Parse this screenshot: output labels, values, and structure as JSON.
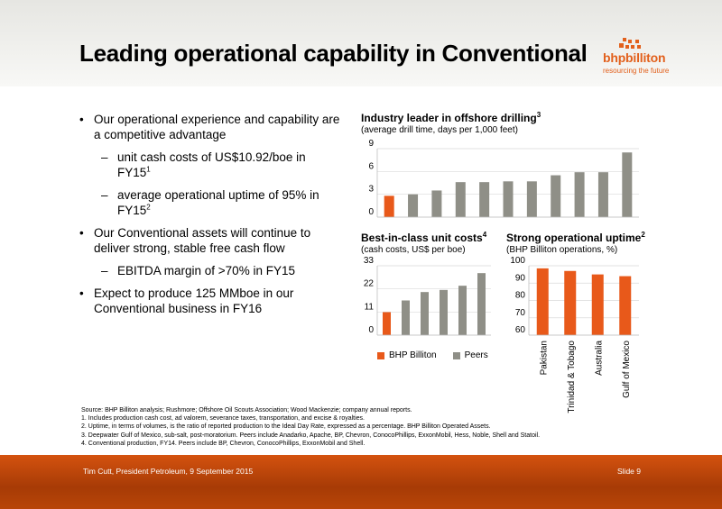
{
  "title": "Leading operational capability in Conventional",
  "logo": {
    "name": "bhpbilliton",
    "tagline": "resourcing the future"
  },
  "bullets": {
    "b1": "Our operational experience and capability are a competitive advantage",
    "s1": "unit cash costs of US$10.92/boe in FY15",
    "s1_ref": "1",
    "s2": "average operational uptime of 95% in FY15",
    "s2_ref": "2",
    "b2": "Our Conventional assets will continue to deliver strong, stable free cash flow",
    "s3": "EBITDA margin of >70% in FY15",
    "b3": "Expect to produce 125 MMboe in our Conventional business in FY16"
  },
  "charts": {
    "drilling": {
      "title": "Industry leader in offshore drilling",
      "ref": "3",
      "subtitle": "(average drill time, days per 1,000 feet)"
    },
    "costs": {
      "title": "Best-in-class unit costs",
      "ref": "4",
      "subtitle": "(cash costs, US$ per boe)"
    },
    "uptime": {
      "title": "Strong operational uptime",
      "ref": "2",
      "subtitle": "(BHP Billiton operations, %)"
    }
  },
  "legend": {
    "bhp": "BHP Billiton",
    "peers": "Peers"
  },
  "colors": {
    "bhp": "#e8591a",
    "peers": "#8f8f87",
    "accent": "#e2601c"
  },
  "chart_data": [
    {
      "type": "bar",
      "title": "Industry leader in offshore drilling",
      "subtitle": "(average drill time, days per 1,000 feet)",
      "yticks": [
        0,
        3,
        6,
        9
      ],
      "ylim": [
        0,
        9
      ],
      "series": [
        {
          "name": "BHP Billiton",
          "values": [
            2.8
          ]
        },
        {
          "name": "Peers",
          "values": [
            3.0,
            3.5,
            4.6,
            4.6,
            4.7,
            4.7,
            5.5,
            5.9,
            5.9,
            8.5
          ]
        }
      ],
      "values": [
        2.8,
        3.0,
        3.5,
        4.6,
        4.6,
        4.7,
        4.7,
        5.5,
        5.9,
        5.9,
        8.5
      ]
    },
    {
      "type": "bar",
      "title": "Best-in-class unit costs",
      "subtitle": "(cash costs, US$ per boe)",
      "yticks": [
        0,
        11,
        22,
        33
      ],
      "ylim": [
        0,
        33
      ],
      "series": [
        {
          "name": "BHP Billiton",
          "values": [
            10.92
          ]
        },
        {
          "name": "Peers",
          "values": [
            16.5,
            20.5,
            21.5,
            23.5,
            29.5
          ]
        }
      ],
      "values": [
        10.92,
        16.5,
        20.5,
        21.5,
        23.5,
        29.5
      ]
    },
    {
      "type": "bar",
      "title": "Strong operational uptime",
      "subtitle": "(BHP Billiton operations, %)",
      "categories": [
        "Pakistan",
        "Trinidad & Tobago",
        "Australia",
        "Gulf of Mexico"
      ],
      "yticks": [
        60,
        70,
        80,
        90,
        100
      ],
      "ylim": [
        60,
        100
      ],
      "values": [
        98.5,
        97,
        95,
        94
      ]
    }
  ],
  "source": "Source:   BHP Billiton analysis; Rushmore; Offshore Oil Scouts Association; Wood Mackenzie; company annual reports.",
  "footnotes": [
    "1.  Includes production cash cost, ad valorem, severance taxes, transportation, and excise & royalties.",
    "2.  Uptime, in terms of volumes, is the ratio of reported production to the Ideal Day Rate, expressed as a percentage. BHP Billiton Operated Assets.",
    "3.  Deepwater Gulf of Mexico, sub-salt, post-moratorium. Peers include Anadarko, Apache, BP, Chevron, ConocoPhillips, ExxonMobil, Hess, Noble, Shell and Statoil.",
    "4.  Conventional production, FY14. Peers include BP, Chevron, ConocoPhillips, ExxonMobil and Shell."
  ],
  "footer": {
    "left": "Tim Cutt, President Petroleum, 9 September 2015",
    "right": "Slide 9"
  }
}
